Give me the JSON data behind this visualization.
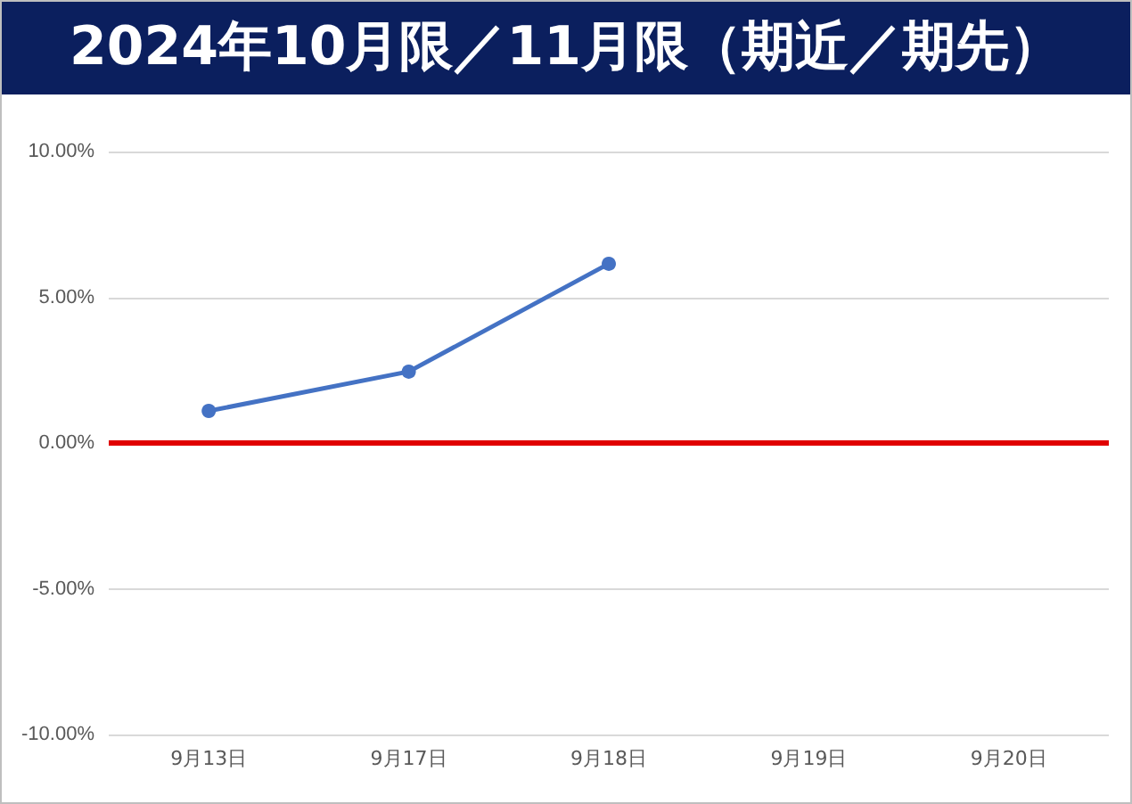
{
  "chart_data": {
    "type": "line",
    "title": "2024年10月限／11月限（期近／期先）",
    "categories": [
      "9月13日",
      "9月17日",
      "9月18日",
      "9月19日",
      "9月20日"
    ],
    "series": [
      {
        "color": "#4472c4",
        "values": [
          1.1,
          2.45,
          6.15,
          null,
          null
        ]
      }
    ],
    "ylim": [
      -10,
      10
    ],
    "yticks": [
      {
        "value": -10,
        "label": "-10.00%"
      },
      {
        "value": -5,
        "label": "-5.00%"
      },
      {
        "value": 0,
        "label": "0.00%"
      },
      {
        "value": 5,
        "label": "5.00%"
      },
      {
        "value": 10,
        "label": "10.00%"
      }
    ],
    "ref_lines": [
      {
        "axis": "y",
        "value": 0,
        "color": "#e00000"
      }
    ],
    "grid": "y",
    "marker": "circle",
    "line_style": "solid"
  }
}
